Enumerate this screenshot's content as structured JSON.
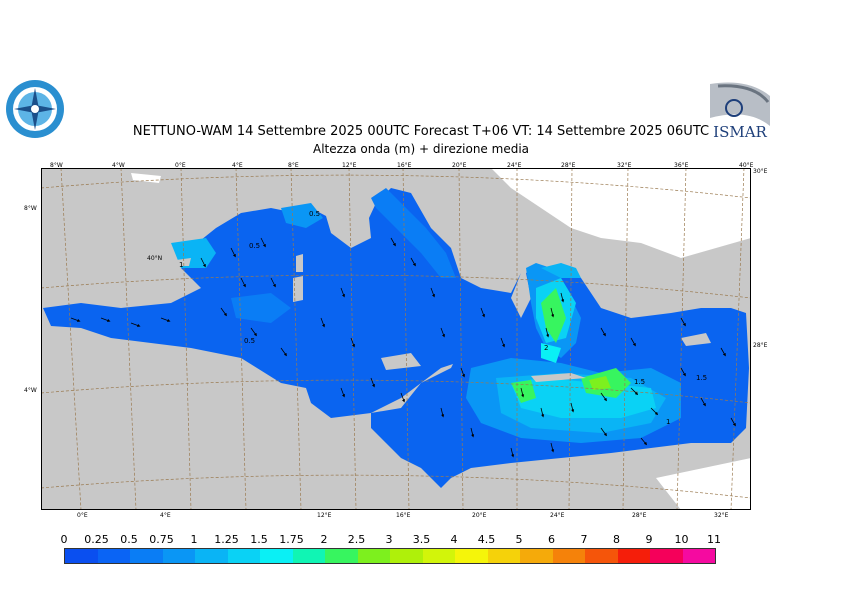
{
  "header": {
    "title": "NETTUNO-WAM 14 Settembre 2025 00UTC Forecast T+06 VT: 14 Settembre 2025 06UTC",
    "subtitle": "Altezza onda (m) + direzione media"
  },
  "logos": {
    "left_name": "meteo-service-emblem",
    "right_text": "ISMAR"
  },
  "map": {
    "top_lon_labels": [
      "8°W",
      "4°W",
      "0°E",
      "4°E",
      "8°E",
      "12°E",
      "16°E",
      "20°E",
      "24°E",
      "28°E",
      "32°E",
      "36°E",
      "40°E"
    ],
    "bottom_lon_labels": [
      "0°E",
      "4°E",
      "12°E",
      "16°E",
      "20°E",
      "24°E",
      "28°E",
      "32°E"
    ],
    "left_lat_labels": [
      "8°W",
      "40°N",
      "4°W"
    ],
    "right_lat_labels": [
      "30°E",
      "28°E"
    ],
    "contour_labels": [
      "0.5",
      "1",
      "0.5",
      "0.5",
      "2",
      "1.5",
      "1.5",
      "1"
    ],
    "colors": {
      "land": "#c8c8c8",
      "land_outside": "#ffffff",
      "graticule": "#9a7a50"
    }
  },
  "colorbar": {
    "labels": [
      "0",
      "0.25",
      "0.5",
      "0.75",
      "1",
      "1.25",
      "1.5",
      "1.75",
      "2",
      "2.5",
      "3",
      "3.5",
      "4",
      "4.5",
      "5",
      "6",
      "7",
      "8",
      "9",
      "10",
      "11"
    ],
    "colors": [
      "#0a4ff0",
      "#0a64f5",
      "#0a7df5",
      "#0a96f5",
      "#0ab4f5",
      "#0ad2f5",
      "#0af0f5",
      "#10f5b4",
      "#37f55f",
      "#7df01e",
      "#aff00a",
      "#d2f50a",
      "#f5f50a",
      "#f5d20a",
      "#f5aa0a",
      "#f5820a",
      "#f5550a",
      "#f51e0a",
      "#f5005a",
      "#f50aa0"
    ]
  }
}
